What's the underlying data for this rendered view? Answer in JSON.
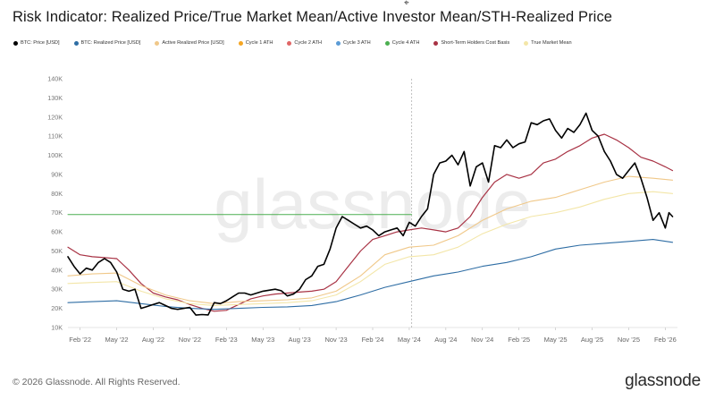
{
  "footer": {
    "copyright": "© 2026 Glassnode. All Rights Reserved.",
    "brand": "glassnode"
  },
  "watermark": "glassnode",
  "cursor_icon": "pointer-arrow-icon",
  "chart_data": {
    "type": "line",
    "title": "Risk Indicator: Realized Price/True Market Mean/Active Investor Mean/STH-Realized Price",
    "xlabel": "",
    "ylabel": "",
    "x_ticks": [
      "Feb '22",
      "May '22",
      "Aug '22",
      "Nov '22",
      "Feb '23",
      "May '23",
      "Aug '23",
      "Nov '23",
      "Feb '24",
      "May '24",
      "Aug '24",
      "Nov '24",
      "Feb '25",
      "May '25",
      "Aug '25",
      "Nov '25",
      "Feb '26"
    ],
    "y_ticks": [
      "10K",
      "20K",
      "30K",
      "40K",
      "50K",
      "60K",
      "70K",
      "80K",
      "90K",
      "100K",
      "110K",
      "120K",
      "130K",
      "140K"
    ],
    "ylim": [
      10000,
      140000
    ],
    "x_unit": "months since Jan 1 2022",
    "xlim": [
      0,
      50
    ],
    "crosshair_x": 28.2,
    "legend": [
      {
        "name": "BTC: Price [USD]",
        "color": "#000000"
      },
      {
        "name": "BTC: Realized Price [USD]",
        "color": "#2e6da4"
      },
      {
        "name": "Active Realized Price [USD]",
        "color": "#f0c889"
      },
      {
        "name": "Cycle 1 ATH",
        "color": "#f5a623"
      },
      {
        "name": "Cycle 2 ATH",
        "color": "#e06666"
      },
      {
        "name": "Cycle 3 ATH",
        "color": "#5b9bd5"
      },
      {
        "name": "Cycle 4 ATH",
        "color": "#4caf50"
      },
      {
        "name": "Short-Term Holders Cost Basis",
        "color": "#a83244"
      },
      {
        "name": "True Market Mean",
        "color": "#f3e6a8"
      }
    ],
    "series": [
      {
        "name": "BTC: Price [USD]",
        "color": "#000000",
        "width": 1.6,
        "x": [
          0,
          0.5,
          1,
          1.5,
          2,
          2.5,
          3,
          3.5,
          4,
          4.5,
          5,
          5.5,
          6,
          6.5,
          7,
          7.5,
          8,
          8.5,
          9,
          9.5,
          10,
          10.5,
          11,
          11.5,
          12,
          12.5,
          13,
          13.5,
          14,
          14.5,
          15,
          15.5,
          16,
          16.5,
          17,
          17.5,
          18,
          18.5,
          19,
          19.5,
          20,
          20.5,
          21,
          21.5,
          22,
          22.5,
          23,
          23.5,
          24,
          24.5,
          25,
          25.5,
          26,
          26.5,
          27,
          27.5,
          28,
          28.5,
          29,
          29.5,
          30,
          30.5,
          31,
          31.5,
          32,
          32.5,
          33,
          33.5,
          34,
          34.5,
          35,
          35.5,
          36,
          36.5,
          37,
          37.5,
          38,
          38.5,
          39,
          39.5,
          40,
          40.5,
          41,
          41.5,
          42,
          42.5,
          43,
          43.5,
          44,
          44.5,
          45,
          45.5,
          46,
          46.5,
          47,
          47.5,
          48,
          48.5,
          49,
          49.3,
          49.6
        ],
        "y": [
          47000,
          42000,
          38000,
          41000,
          40000,
          44000,
          46000,
          44000,
          39000,
          30000,
          29000,
          30000,
          20000,
          21000,
          22000,
          23000,
          21500,
          20000,
          19500,
          20000,
          20500,
          16500,
          16800,
          16600,
          23000,
          22500,
          24000,
          26000,
          28000,
          28000,
          27000,
          28000,
          29000,
          29500,
          30000,
          29200,
          26500,
          27500,
          30000,
          35000,
          37000,
          42000,
          43000,
          51000,
          62000,
          68000,
          66000,
          64000,
          62000,
          63000,
          61000,
          58000,
          60000,
          61000,
          62000,
          58000,
          65000,
          63000,
          68000,
          72000,
          90000,
          96000,
          97000,
          100000,
          95000,
          102000,
          84000,
          94000,
          96000,
          86000,
          105000,
          104000,
          108000,
          104000,
          106000,
          107000,
          117000,
          116000,
          118000,
          119000,
          113000,
          109000,
          114000,
          112000,
          116000,
          122000,
          113000,
          110000,
          102000,
          97000,
          90000,
          88000,
          92000,
          96000,
          88000,
          78000,
          66000,
          70000,
          62000,
          70000,
          68000
        ]
      },
      {
        "name": "BTC: Realized Price [USD]",
        "color": "#2e6da4",
        "width": 1.1,
        "x": [
          0,
          2,
          4,
          6,
          8,
          10,
          12,
          14,
          16,
          18,
          20,
          22,
          24,
          26,
          28,
          30,
          32,
          34,
          36,
          38,
          40,
          42,
          44,
          46,
          48,
          49.6
        ],
        "y": [
          23000,
          23500,
          24000,
          22500,
          21000,
          20000,
          19500,
          20000,
          20500,
          20800,
          21500,
          23500,
          27000,
          31000,
          34000,
          37000,
          39000,
          42000,
          44000,
          47000,
          51000,
          53000,
          54000,
          55000,
          56000,
          54500
        ]
      },
      {
        "name": "Active Realized Price [USD]",
        "color": "#f0c889",
        "width": 1.1,
        "x": [
          0,
          2,
          4,
          6,
          8,
          10,
          12,
          14,
          16,
          18,
          20,
          22,
          24,
          26,
          28,
          30,
          32,
          34,
          36,
          38,
          40,
          42,
          44,
          46,
          48,
          49.6
        ],
        "y": [
          37000,
          38000,
          38500,
          32000,
          27000,
          24000,
          22500,
          23500,
          24000,
          24500,
          25500,
          29000,
          37000,
          48000,
          52000,
          53000,
          58000,
          66000,
          72000,
          76000,
          78000,
          82000,
          86000,
          89000,
          88000,
          87000
        ]
      },
      {
        "name": "True Market Mean",
        "color": "#f3e6a8",
        "width": 1.1,
        "x": [
          0,
          2,
          4,
          6,
          8,
          10,
          12,
          14,
          16,
          18,
          20,
          22,
          24,
          26,
          28,
          30,
          32,
          34,
          36,
          38,
          40,
          42,
          44,
          46,
          48,
          49.6
        ],
        "y": [
          33000,
          33500,
          34000,
          29000,
          25000,
          22500,
          21500,
          22000,
          22500,
          23000,
          24000,
          27000,
          34000,
          43000,
          47000,
          48000,
          52000,
          59000,
          64000,
          68000,
          70000,
          73000,
          77000,
          80000,
          81000,
          80000
        ]
      },
      {
        "name": "Short-Term Holders Cost Basis",
        "color": "#a83244",
        "width": 1.2,
        "x": [
          0,
          1,
          2,
          3,
          4,
          5,
          6,
          7,
          8,
          9,
          10,
          11,
          12,
          13,
          14,
          15,
          16,
          17,
          18,
          19,
          20,
          21,
          22,
          23,
          24,
          25,
          26,
          27,
          28,
          29,
          30,
          31,
          32,
          33,
          34,
          35,
          36,
          37,
          38,
          39,
          40,
          41,
          42,
          43,
          44,
          45,
          46,
          47,
          48,
          49,
          49.6
        ],
        "y": [
          52000,
          48000,
          47000,
          46500,
          46000,
          40000,
          33000,
          28000,
          26000,
          24500,
          22000,
          20000,
          18500,
          19000,
          22000,
          25000,
          26500,
          27500,
          28000,
          28500,
          29000,
          30000,
          34000,
          42000,
          50000,
          56000,
          58000,
          60000,
          61000,
          62000,
          61000,
          60000,
          62000,
          68000,
          78000,
          86000,
          90000,
          88000,
          90000,
          96000,
          98000,
          102000,
          105000,
          109000,
          111000,
          108000,
          104000,
          99000,
          97000,
          94000,
          92000
        ]
      },
      {
        "name": "Cycle 4 ATH",
        "color": "#4caf50",
        "width": 1.0,
        "x": [
          0,
          28.2
        ],
        "y": [
          69000,
          69000
        ]
      }
    ]
  }
}
